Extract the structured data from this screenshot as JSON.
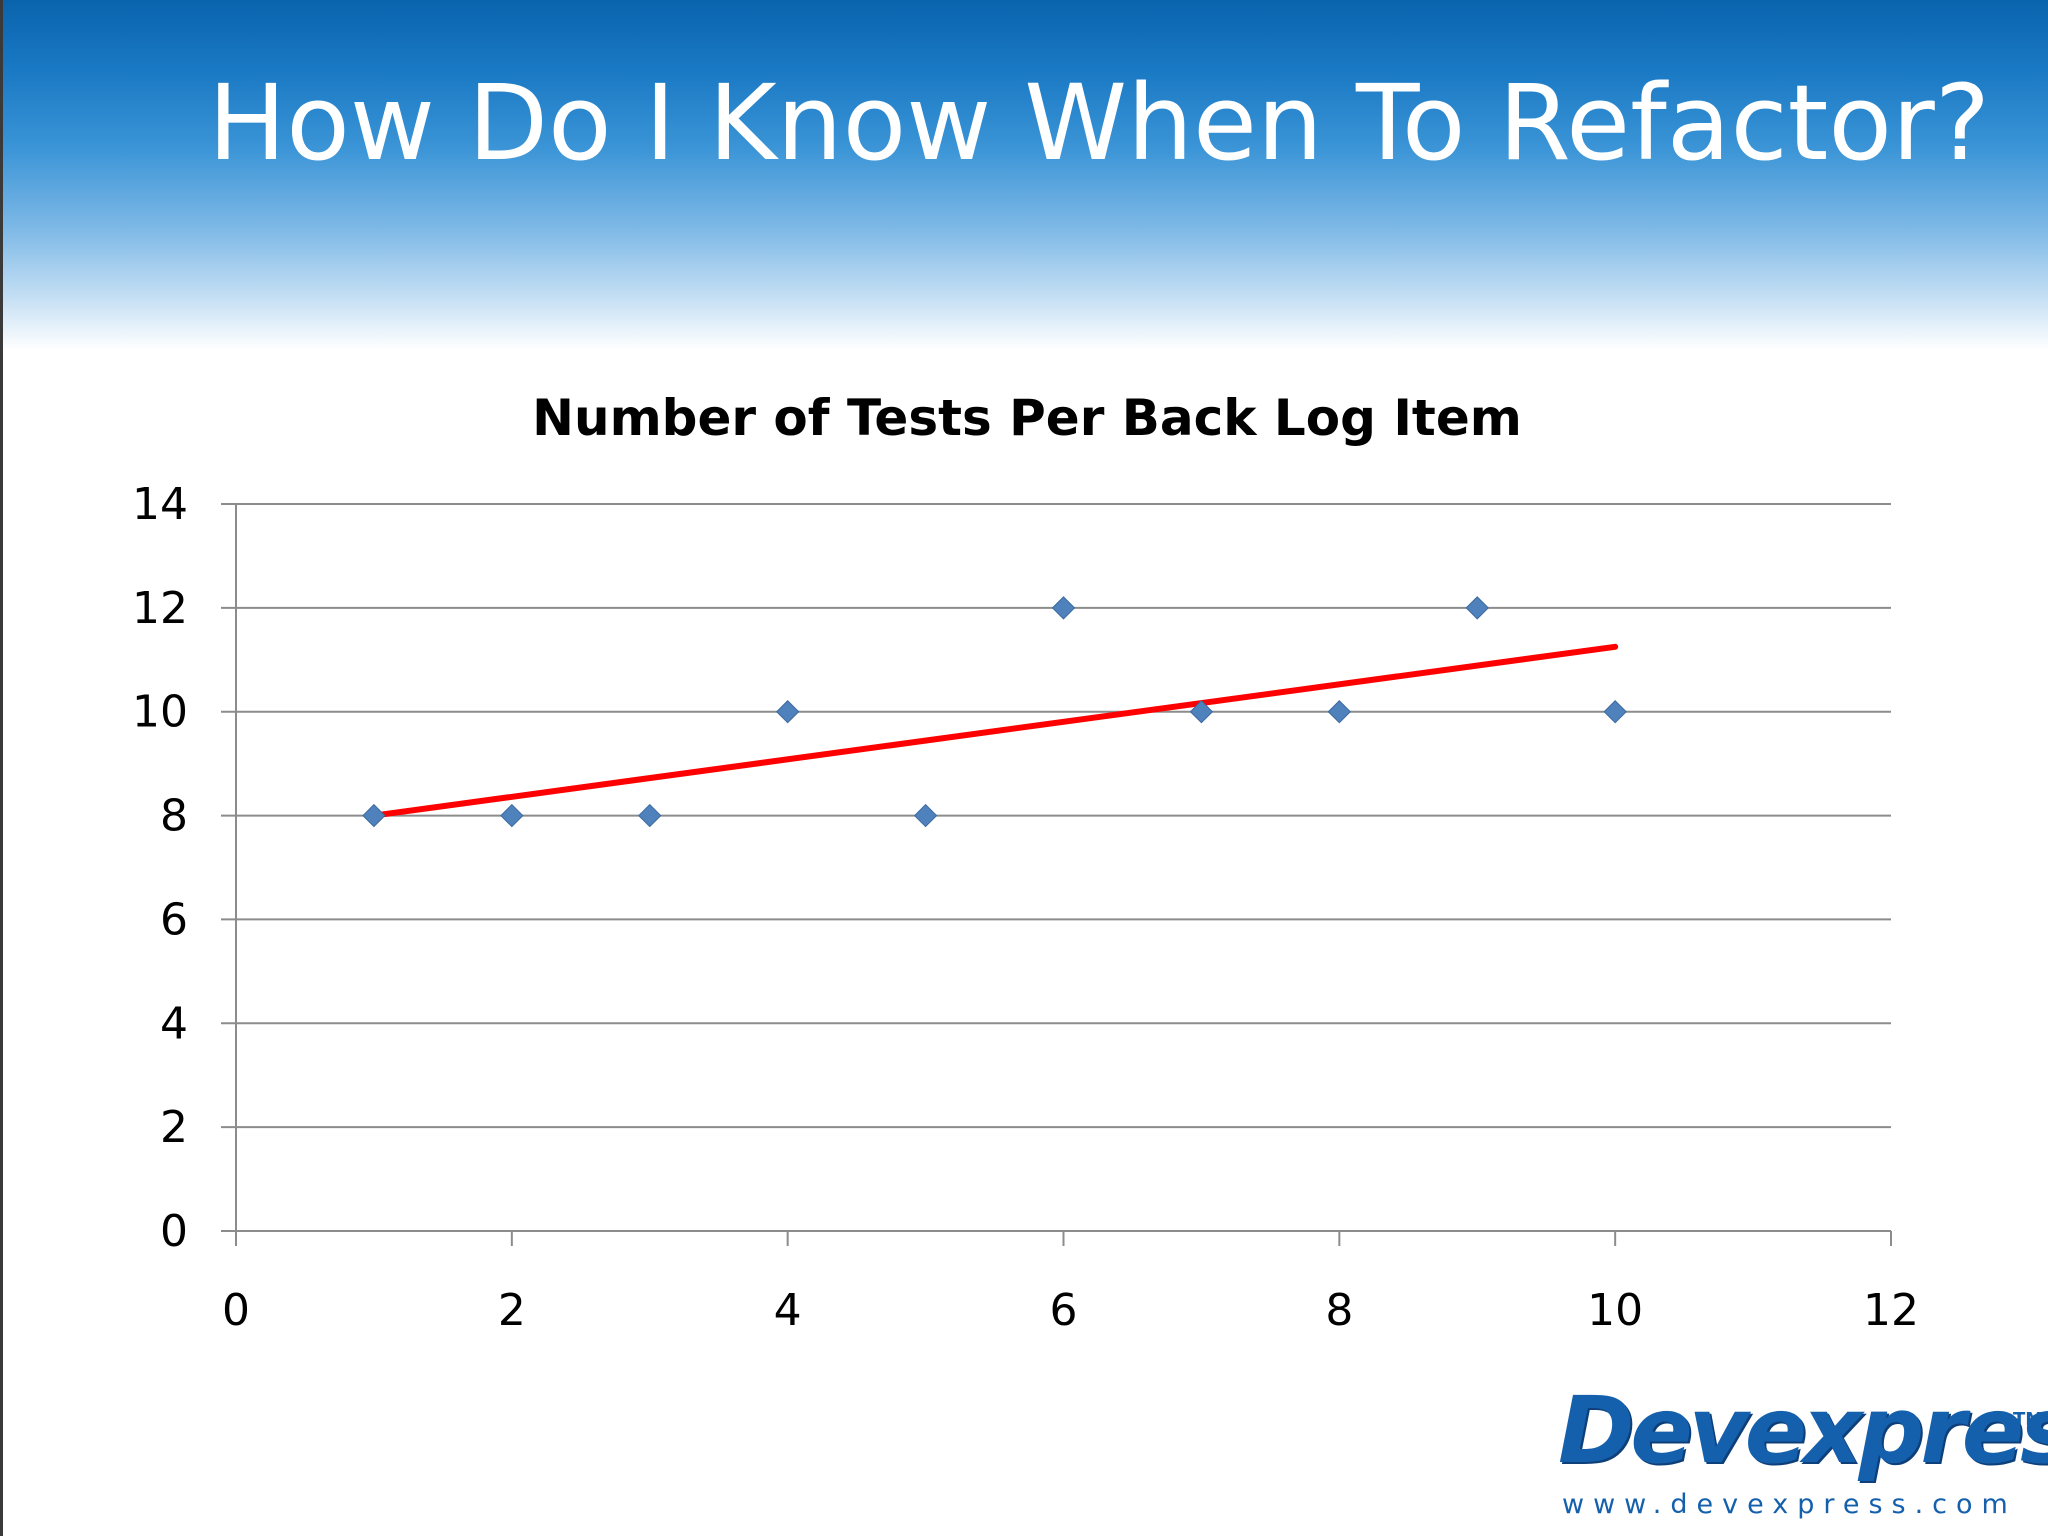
{
  "slide": {
    "title": "How Do I Know When To Refactor?"
  },
  "logo": {
    "name": "Devexpress",
    "trademark": "TM",
    "url": "www.devexpress.com"
  },
  "chart_data": {
    "type": "scatter",
    "title": "Number of Tests Per Back Log Item",
    "xlabel": "",
    "ylabel": "",
    "xlim": [
      0,
      12
    ],
    "ylim": [
      0,
      14
    ],
    "x_ticks": [
      0,
      2,
      4,
      6,
      8,
      10,
      12
    ],
    "y_ticks": [
      0,
      2,
      4,
      6,
      8,
      10,
      12,
      14
    ],
    "grid": "horizontal",
    "legend": "none",
    "series": [
      {
        "marker": "diamond",
        "color": "#4f81bd",
        "x": [
          1,
          2,
          3,
          4,
          5,
          6,
          7,
          8,
          9,
          10
        ],
        "y": [
          8,
          8,
          8,
          10,
          8,
          12,
          10,
          10,
          12,
          10
        ]
      }
    ],
    "trendline": {
      "type": "linear",
      "color": "#ff0000",
      "x": [
        1,
        10
      ],
      "y": [
        8.0,
        11.25
      ]
    }
  }
}
